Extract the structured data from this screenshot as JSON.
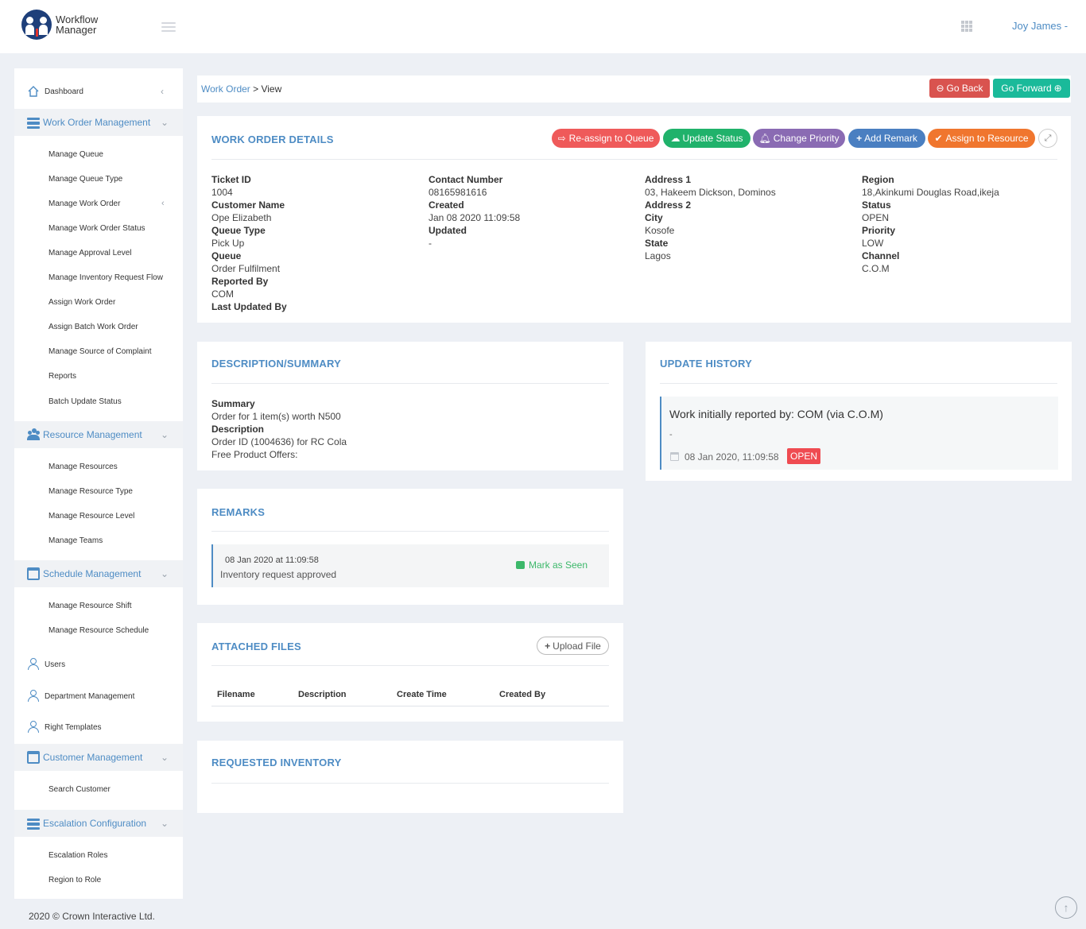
{
  "app": {
    "logo_line1": "Workflow",
    "logo_line2": "Manager",
    "user": "Joy James -",
    "footer": "2020 © Crown Interactive Ltd."
  },
  "sidebar": {
    "dashboard": "Dashboard",
    "work_order_mgmt": "Work Order Management",
    "wo_items": [
      "Manage Queue",
      "Manage Queue Type",
      "Manage Work Order",
      "Manage Work Order Status",
      "Manage Approval Level",
      "Manage Inventory Request Flow",
      "Assign Work Order",
      "Assign Batch Work Order",
      "Manage Source of Complaint",
      "Reports",
      "Batch Update Status"
    ],
    "resource_mgmt": "Resource Management",
    "res_items": [
      "Manage Resources",
      "Manage Resource Type",
      "Manage Resource Level",
      "Manage Teams"
    ],
    "schedule_mgmt": "Schedule Management",
    "sch_items": [
      "Manage Resource Shift",
      "Manage Resource Schedule"
    ],
    "users": "Users",
    "department": "Department Management",
    "right_templates": "Right Templates",
    "customer_mgmt": "Customer Management",
    "cust_items": [
      "Search Customer"
    ],
    "escalation": "Escalation Configuration",
    "esc_items": [
      "Escalation Roles",
      "Region to Role"
    ]
  },
  "breadcrumb": {
    "link": "Work Order",
    "current": " > View",
    "go_back": "Go Back",
    "go_forward": "Go Forward"
  },
  "details": {
    "title": "WORK ORDER DETAILS",
    "actions": {
      "reassign": "Re-assign to Queue",
      "update_status": "Update Status",
      "change_priority": "Change Priority",
      "add_remark": "Add Remark",
      "assign_resource": "Assign to Resource"
    },
    "col1": [
      {
        "label": "Ticket ID",
        "value": "1004"
      },
      {
        "label": "Customer Name",
        "value": "Ope Elizabeth"
      },
      {
        "label": "Queue Type",
        "value": "Pick Up"
      },
      {
        "label": "Queue",
        "value": "Order Fulfilment"
      },
      {
        "label": "Reported By",
        "value": "COM"
      },
      {
        "label": "Last Updated By",
        "value": ""
      }
    ],
    "col2": [
      {
        "label": "Contact Number",
        "value": "08165981616"
      },
      {
        "label": "Created",
        "value": "Jan 08 2020 11:09:58"
      },
      {
        "label": "Updated",
        "value": "-"
      }
    ],
    "col3": [
      {
        "label": "Address 1",
        "value": "03, Hakeem Dickson, Dominos"
      },
      {
        "label": "Address 2",
        "value": ""
      },
      {
        "label": "City",
        "value": "Kosofe"
      },
      {
        "label": "State",
        "value": "Lagos"
      }
    ],
    "col4": [
      {
        "label": "Region",
        "value": "18,Akinkumi Douglas Road,ikeja"
      },
      {
        "label": "Status",
        "value": "OPEN"
      },
      {
        "label": "Priority",
        "value": "LOW"
      },
      {
        "label": "Channel",
        "value": "C.O.M"
      }
    ]
  },
  "description": {
    "title": "DESCRIPTION/SUMMARY",
    "summary_label": "Summary",
    "summary_value": "Order for 1 item(s) worth N500",
    "description_label": "Description",
    "description_line1": "Order ID (1004636) for RC Cola",
    "description_line2": "Free Product Offers:"
  },
  "history": {
    "title": "UPDATE HISTORY",
    "entry_text": "Work initially reported by: COM (via C.O.M)",
    "entry_note": "-",
    "entry_time": "08 Jan 2020, 11:09:58",
    "entry_status": "OPEN"
  },
  "remarks": {
    "title": "REMARKS",
    "time": "08 Jan 2020 at 11:09:58",
    "text": "Inventory request approved",
    "mark_seen": "Mark as Seen"
  },
  "files": {
    "title": "ATTACHED FILES",
    "upload": "Upload File",
    "headers": [
      "Filename",
      "Description",
      "Create Time",
      "Created By"
    ]
  },
  "inventory": {
    "title": "REQUESTED INVENTORY"
  }
}
